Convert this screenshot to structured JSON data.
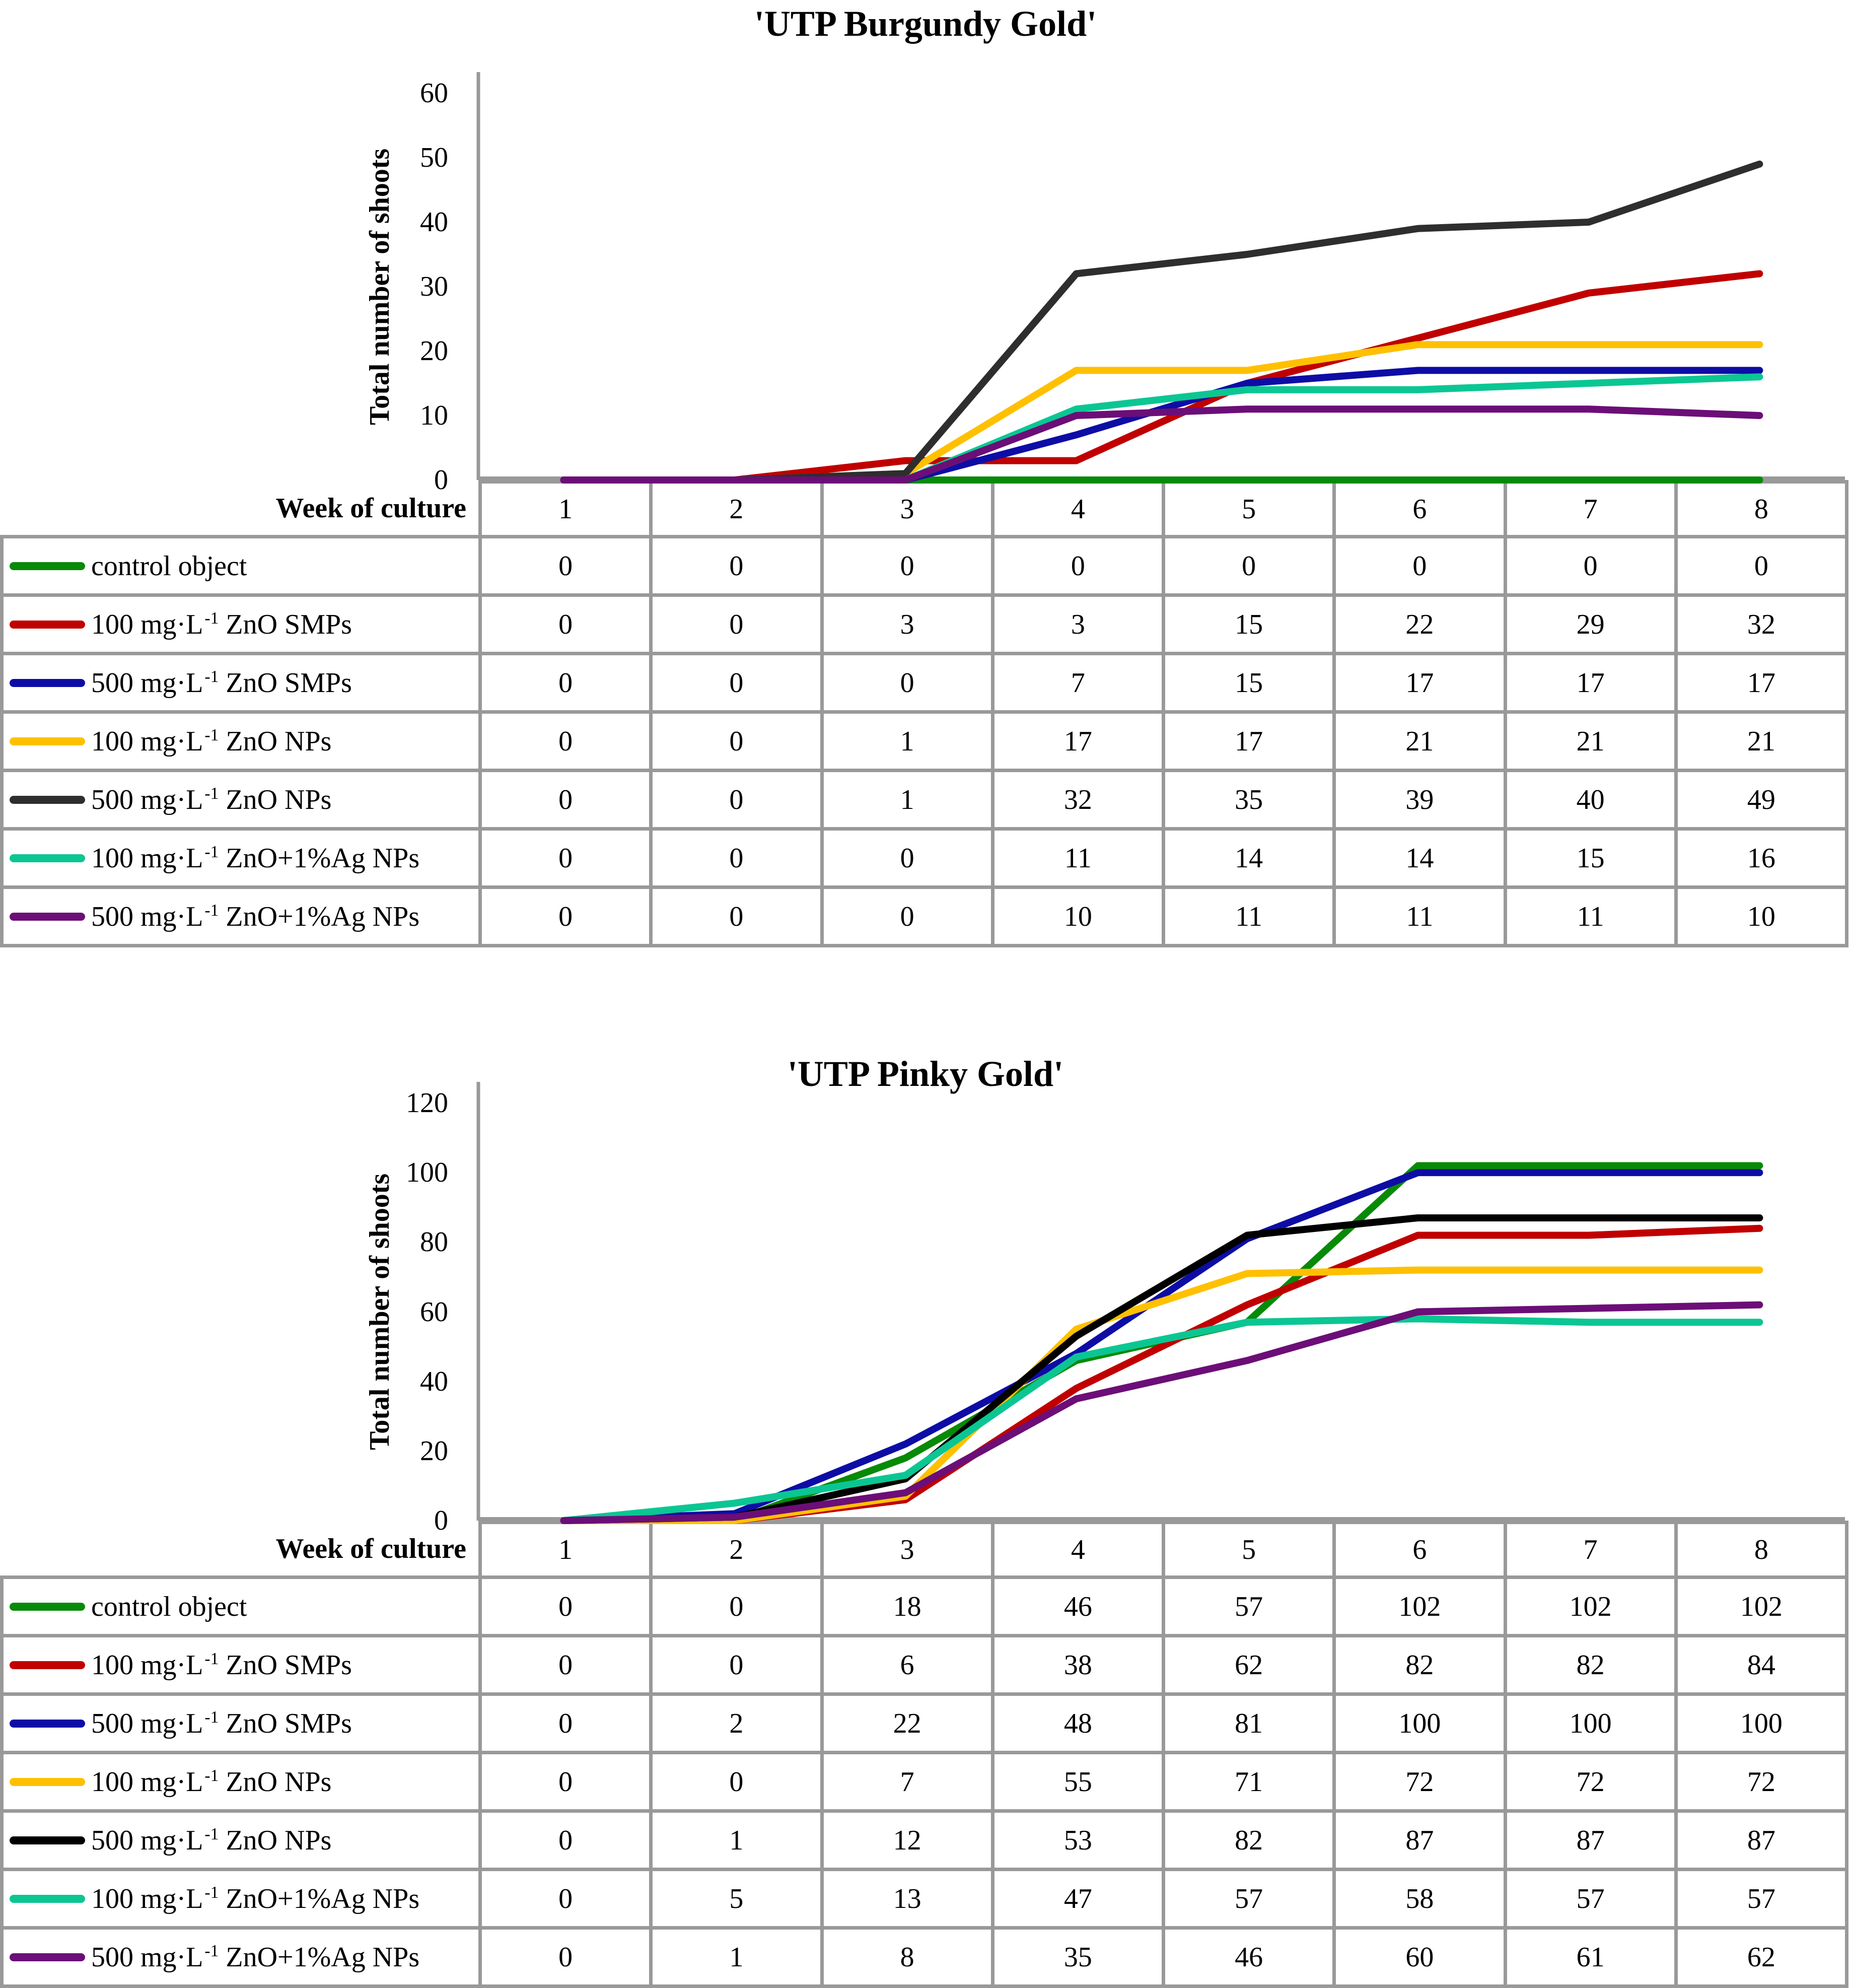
{
  "colors": {
    "background": "#FFFFFF",
    "axis": "#999999",
    "table_border": "#999999",
    "text": "#000000"
  },
  "chart_data": [
    {
      "type": "line",
      "title": "'UTP Burgundy Gold'",
      "ylabel": "Total number of shoots",
      "xlabel": "Week of culture",
      "x": [
        1,
        2,
        3,
        4,
        5,
        6,
        7,
        8
      ],
      "ylim": [
        0,
        60
      ],
      "yticks": [
        0,
        10,
        20,
        30,
        40,
        50,
        60
      ],
      "grid": false,
      "legend_position": "table-left",
      "series": [
        {
          "name": "control object",
          "color": "#078A07",
          "label": {
            "prefix": "control object",
            "sup": "",
            "suffix": ""
          },
          "values": [
            0,
            0,
            0,
            0,
            0,
            0,
            0,
            0
          ]
        },
        {
          "name": "100 mg·L⁻¹ ZnO SMPs",
          "color": "#C00000",
          "label": {
            "prefix": "100 mg·L",
            "sup": "-1",
            "suffix": " ZnO SMPs"
          },
          "values": [
            0,
            0,
            3,
            3,
            15,
            22,
            29,
            32
          ]
        },
        {
          "name": "500 mg·L⁻¹ ZnO SMPs",
          "color": "#0D0DA6",
          "label": {
            "prefix": "500 mg·L",
            "sup": "-1",
            "suffix": " ZnO SMPs"
          },
          "values": [
            0,
            0,
            0,
            7,
            15,
            17,
            17,
            17
          ]
        },
        {
          "name": "100 mg·L⁻¹ ZnO NPs",
          "color": "#FFC000",
          "label": {
            "prefix": "100 mg·L",
            "sup": "-1",
            "suffix": " ZnO NPs"
          },
          "values": [
            0,
            0,
            1,
            17,
            17,
            21,
            21,
            21
          ]
        },
        {
          "name": "500 mg·L⁻¹ ZnO NPs",
          "color": "#2E2E2E",
          "label": {
            "prefix": "500 mg·L",
            "sup": "-1",
            "suffix": " ZnO NPs"
          },
          "values": [
            0,
            0,
            1,
            32,
            35,
            39,
            40,
            49
          ]
        },
        {
          "name": "100 mg·L⁻¹ ZnO+1%Ag NPs",
          "color": "#0BC693",
          "label": {
            "prefix": "100 mg·L",
            "sup": "-1",
            "suffix": " ZnO+1%Ag NPs"
          },
          "values": [
            0,
            0,
            0,
            11,
            14,
            14,
            15,
            16
          ]
        },
        {
          "name": "500 mg·L⁻¹ ZnO+1%Ag NPs",
          "color": "#6C0E77",
          "label": {
            "prefix": "500 mg·L",
            "sup": "-1",
            "suffix": " ZnO+1%Ag NPs"
          },
          "values": [
            0,
            0,
            0,
            10,
            11,
            11,
            11,
            10
          ]
        }
      ]
    },
    {
      "type": "line",
      "title": "'UTP Pinky Gold'",
      "ylabel": "Total number of shoots",
      "xlabel": "Week of culture",
      "x": [
        1,
        2,
        3,
        4,
        5,
        6,
        7,
        8
      ],
      "ylim": [
        0,
        120
      ],
      "yticks": [
        0,
        20,
        40,
        60,
        80,
        100,
        120
      ],
      "grid": false,
      "legend_position": "table-left",
      "series": [
        {
          "name": "control object",
          "color": "#078A07",
          "label": {
            "prefix": "control object",
            "sup": "",
            "suffix": ""
          },
          "values": [
            0,
            0,
            18,
            46,
            57,
            102,
            102,
            102
          ]
        },
        {
          "name": "100 mg·L⁻¹ ZnO SMPs",
          "color": "#C00000",
          "label": {
            "prefix": "100 mg·L",
            "sup": "-1",
            "suffix": " ZnO SMPs"
          },
          "values": [
            0,
            0,
            6,
            38,
            62,
            82,
            82,
            84
          ]
        },
        {
          "name": "500 mg·L⁻¹ ZnO SMPs",
          "color": "#0D0DA6",
          "label": {
            "prefix": "500 mg·L",
            "sup": "-1",
            "suffix": " ZnO SMPs"
          },
          "values": [
            0,
            2,
            22,
            48,
            81,
            100,
            100,
            100
          ]
        },
        {
          "name": "100 mg·L⁻¹ ZnO NPs",
          "color": "#FFC000",
          "label": {
            "prefix": "100 mg·L",
            "sup": "-1",
            "suffix": " ZnO NPs"
          },
          "values": [
            0,
            0,
            7,
            55,
            71,
            72,
            72,
            72
          ]
        },
        {
          "name": "500 mg·L⁻¹ ZnO NPs",
          "color": "#000000",
          "label": {
            "prefix": "500 mg·L",
            "sup": "-1",
            "suffix": " ZnO NPs"
          },
          "values": [
            0,
            1,
            12,
            53,
            82,
            87,
            87,
            87
          ]
        },
        {
          "name": "100 mg·L⁻¹ ZnO+1%Ag NPs",
          "color": "#0BC693",
          "label": {
            "prefix": "100 mg·L",
            "sup": "-1",
            "suffix": " ZnO+1%Ag NPs"
          },
          "values": [
            0,
            5,
            13,
            47,
            57,
            58,
            57,
            57
          ]
        },
        {
          "name": "500 mg·L⁻¹ ZnO+1%Ag NPs",
          "color": "#6C0E77",
          "label": {
            "prefix": "500 mg·L",
            "sup": "-1",
            "suffix": " ZnO+1%Ag NPs"
          },
          "values": [
            0,
            1,
            8,
            35,
            46,
            60,
            61,
            62
          ]
        }
      ]
    }
  ]
}
